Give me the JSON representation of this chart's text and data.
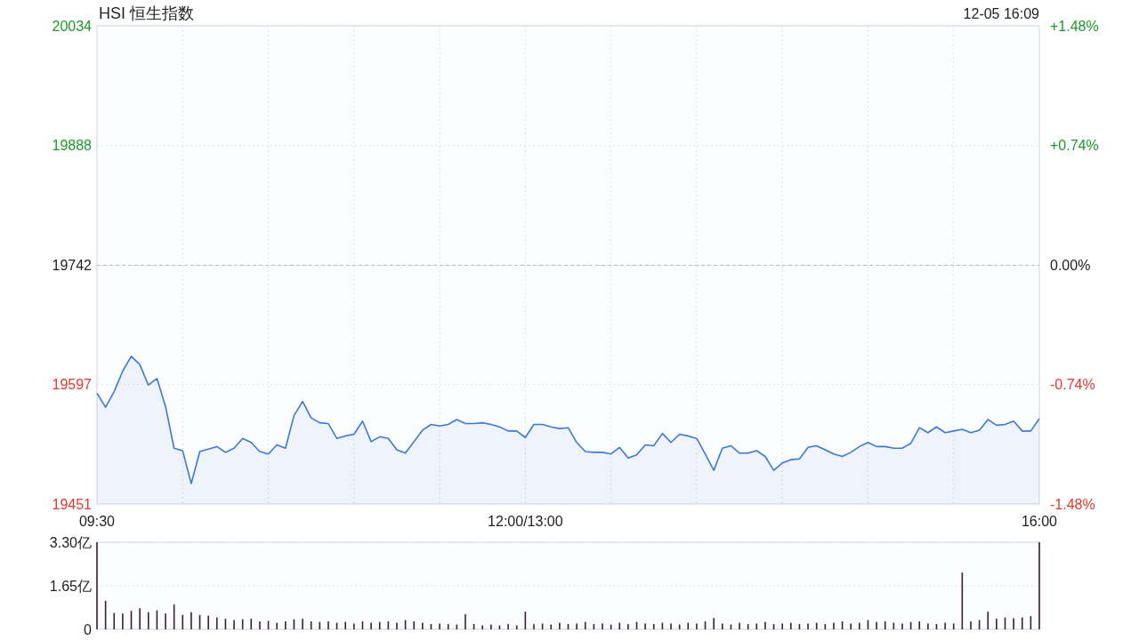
{
  "chart_data": [
    {
      "type": "area",
      "title": "HSI 恒生指数",
      "subtitle": "12-05 16:09",
      "categories": [
        "09:30",
        null,
        null,
        null,
        null,
        null,
        null,
        null,
        null,
        null,
        null,
        null,
        null,
        null,
        null,
        null,
        null,
        null,
        null,
        null,
        null,
        null,
        null,
        null,
        null,
        null,
        null,
        null,
        null,
        null,
        null,
        null,
        null,
        null,
        null,
        null,
        null,
        null,
        null,
        null,
        null,
        null,
        null,
        null,
        null,
        null,
        null,
        null,
        null,
        null,
        "12:00/13:00",
        null,
        null,
        null,
        null,
        null,
        null,
        null,
        null,
        null,
        null,
        null,
        null,
        null,
        null,
        null,
        null,
        null,
        null,
        null,
        null,
        null,
        null,
        null,
        null,
        null,
        null,
        null,
        null,
        null,
        null,
        null,
        null,
        null,
        null,
        null,
        null,
        null,
        null,
        null,
        null,
        null,
        null,
        null,
        null,
        null,
        null,
        null,
        null,
        null,
        null,
        null,
        null,
        null,
        null,
        null,
        null,
        null,
        null,
        null,
        "16:00"
      ],
      "ylim": [
        19451,
        20034
      ],
      "yticks": [
        19451,
        19597,
        19742,
        19888,
        20034
      ],
      "y2lim": [
        -1.48,
        1.48
      ],
      "y2ticks": [
        {
          "value": -1.48,
          "label": "-1.48%"
        },
        {
          "value": -0.74,
          "label": "-0.74%"
        },
        {
          "value": 0,
          "label": "0.00%"
        },
        {
          "value": 0.74,
          "label": "+0.74%"
        },
        {
          "value": 1.48,
          "label": "+1.48%"
        }
      ],
      "grid": true,
      "ref_lines": [
        {
          "axis": "y",
          "value": 19742,
          "color": "#bbbbbb",
          "line_style": "dashed"
        }
      ],
      "series": [
        {
          "color": "#3d78d8",
          "values": [
            19586,
            19569,
            19588,
            19613,
            19631,
            19621,
            19596,
            19604,
            19570,
            19519,
            19516,
            19476,
            19515,
            19518,
            19521,
            19514,
            19519,
            19531,
            19526,
            19515,
            19512,
            19523,
            19519,
            19559,
            19576,
            19556,
            19550,
            19549,
            19531,
            19534,
            19536,
            19552,
            19527,
            19533,
            19531,
            19517,
            19513,
            19527,
            19541,
            19548,
            19546,
            19548,
            19554,
            19549,
            19549,
            19550,
            19548,
            19545,
            19540,
            19540,
            19532,
            19548,
            19548,
            19545,
            19543,
            19544,
            19526,
            19515,
            19514,
            19514,
            19512,
            19520,
            19507,
            19511,
            19523,
            19522,
            19537,
            19526,
            19536,
            19534,
            19531,
            19512,
            19492,
            19519,
            19522,
            19513,
            19513,
            19516,
            19509,
            19492,
            19501,
            19505,
            19506,
            19520,
            19522,
            19517,
            19512,
            19509,
            19514,
            19521,
            19526,
            19521,
            19521,
            19519,
            19519,
            19525,
            19544,
            19538,
            19545,
            19538,
            19540,
            19542,
            19538,
            19541,
            19554,
            19547,
            19548,
            19552,
            19540,
            19540,
            19555
          ]
        }
      ]
    },
    {
      "type": "bar",
      "categories": [
        null,
        null,
        null,
        null,
        null,
        null,
        null,
        null,
        null,
        null,
        null,
        null,
        null,
        null,
        null,
        null,
        null,
        null,
        null,
        null,
        null,
        null,
        null,
        null,
        null,
        null,
        null,
        null,
        null,
        null,
        null,
        null,
        null,
        null,
        null,
        null,
        null,
        null,
        null,
        null,
        null,
        null,
        null,
        null,
        null,
        null,
        null,
        null,
        null,
        null,
        null,
        null,
        null,
        null,
        null,
        null,
        null,
        null,
        null,
        null,
        null,
        null,
        null,
        null,
        null,
        null,
        null,
        null,
        null,
        null,
        null,
        null,
        null,
        null,
        null,
        null,
        null,
        null,
        null,
        null,
        null,
        null,
        null,
        null,
        null,
        null,
        null,
        null,
        null,
        null,
        null,
        null,
        null,
        null,
        null,
        null,
        null,
        null,
        null,
        null,
        null,
        null,
        null,
        null,
        null,
        null,
        null,
        null,
        null,
        null,
        null
      ],
      "ylim": [
        0,
        3.3
      ],
      "yticks": [
        0,
        {
          "value": 1.65,
          "label": "1.65亿"
        },
        {
          "value": 3.3,
          "label": "3.30亿"
        }
      ],
      "grid": "y",
      "tick_labels": "y",
      "series": [
        {
          "color": "#3b1d3b",
          "values": [
            3.3,
            1.08,
            0.62,
            0.6,
            0.7,
            0.8,
            0.65,
            0.72,
            0.6,
            0.94,
            0.55,
            0.65,
            0.55,
            0.52,
            0.45,
            0.4,
            0.35,
            0.38,
            0.4,
            0.3,
            0.32,
            0.25,
            0.3,
            0.38,
            0.4,
            0.3,
            0.28,
            0.3,
            0.25,
            0.28,
            0.22,
            0.3,
            0.25,
            0.28,
            0.3,
            0.25,
            0.35,
            0.3,
            0.25,
            0.2,
            0.22,
            0.2,
            0.18,
            0.57,
            0.2,
            0.15,
            0.18,
            0.15,
            0.2,
            0.15,
            0.67,
            0.2,
            0.22,
            0.18,
            0.25,
            0.2,
            0.22,
            0.28,
            0.2,
            0.22,
            0.18,
            0.25,
            0.2,
            0.28,
            0.22,
            0.2,
            0.25,
            0.22,
            0.18,
            0.25,
            0.22,
            0.3,
            0.43,
            0.22,
            0.18,
            0.25,
            0.2,
            0.22,
            0.28,
            0.2,
            0.22,
            0.25,
            0.2,
            0.22,
            0.25,
            0.2,
            0.25,
            0.3,
            0.22,
            0.25,
            0.35,
            0.28,
            0.3,
            0.25,
            0.22,
            0.28,
            0.3,
            0.22,
            0.2,
            0.25,
            0.22,
            2.15,
            0.3,
            0.35,
            0.67,
            0.4,
            0.45,
            0.42,
            0.45,
            0.5,
            3.3
          ]
        }
      ]
    }
  ]
}
